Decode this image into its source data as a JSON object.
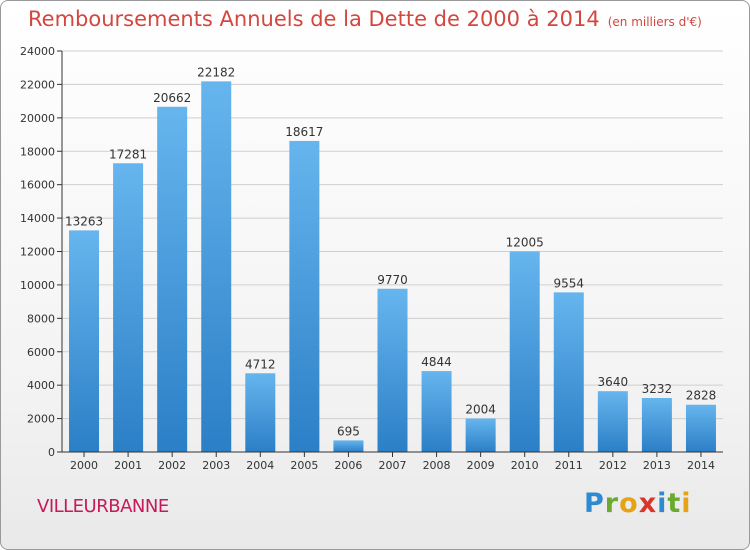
{
  "title": "Remboursements Annuels de la Dette de 2000 à 2014",
  "subtitle": "(en milliers d'€)",
  "location": "VILLEURBANNE",
  "logo": {
    "letters": [
      {
        "ch": "P",
        "color": "#2e8bd0"
      },
      {
        "ch": "r",
        "color": "#6aaa2e"
      },
      {
        "ch": "o",
        "color": "#e6a316"
      },
      {
        "ch": "x",
        "color": "#d9362a"
      },
      {
        "ch": "i",
        "color": "#2e8bd0"
      },
      {
        "ch": "t",
        "color": "#6aaa2e"
      },
      {
        "ch": "i",
        "color": "#e6a316"
      }
    ]
  },
  "colors": {
    "bar_top": "#66b5ee",
    "bar_bottom": "#2b7fc6",
    "axis": "#333333",
    "grid": "#cfcfcf",
    "title": "#d2473f",
    "location": "#c61a5b"
  },
  "chart_data": {
    "type": "bar",
    "categories": [
      "2000",
      "2001",
      "2002",
      "2003",
      "2004",
      "2005",
      "2006",
      "2007",
      "2008",
      "2009",
      "2010",
      "2011",
      "2012",
      "2013",
      "2014"
    ],
    "values": [
      13263,
      17281,
      20662,
      22182,
      4712,
      18617,
      695,
      9770,
      4844,
      2004,
      12005,
      9554,
      3640,
      3232,
      2828
    ],
    "data_labels": [
      "13263",
      "17281",
      "20662",
      "22182",
      "4712",
      "18617",
      "695",
      "9770",
      "4844",
      "2004",
      "12005",
      "9554",
      "3640",
      "3232",
      "2828"
    ],
    "yticks": [
      0,
      2000,
      4000,
      6000,
      8000,
      10000,
      12000,
      14000,
      16000,
      18000,
      20000,
      22000,
      24000
    ],
    "ylim": [
      0,
      24000
    ],
    "grid": true,
    "title": "Remboursements Annuels de la Dette de 2000 à 2014",
    "xlabel": "",
    "ylabel": ""
  }
}
